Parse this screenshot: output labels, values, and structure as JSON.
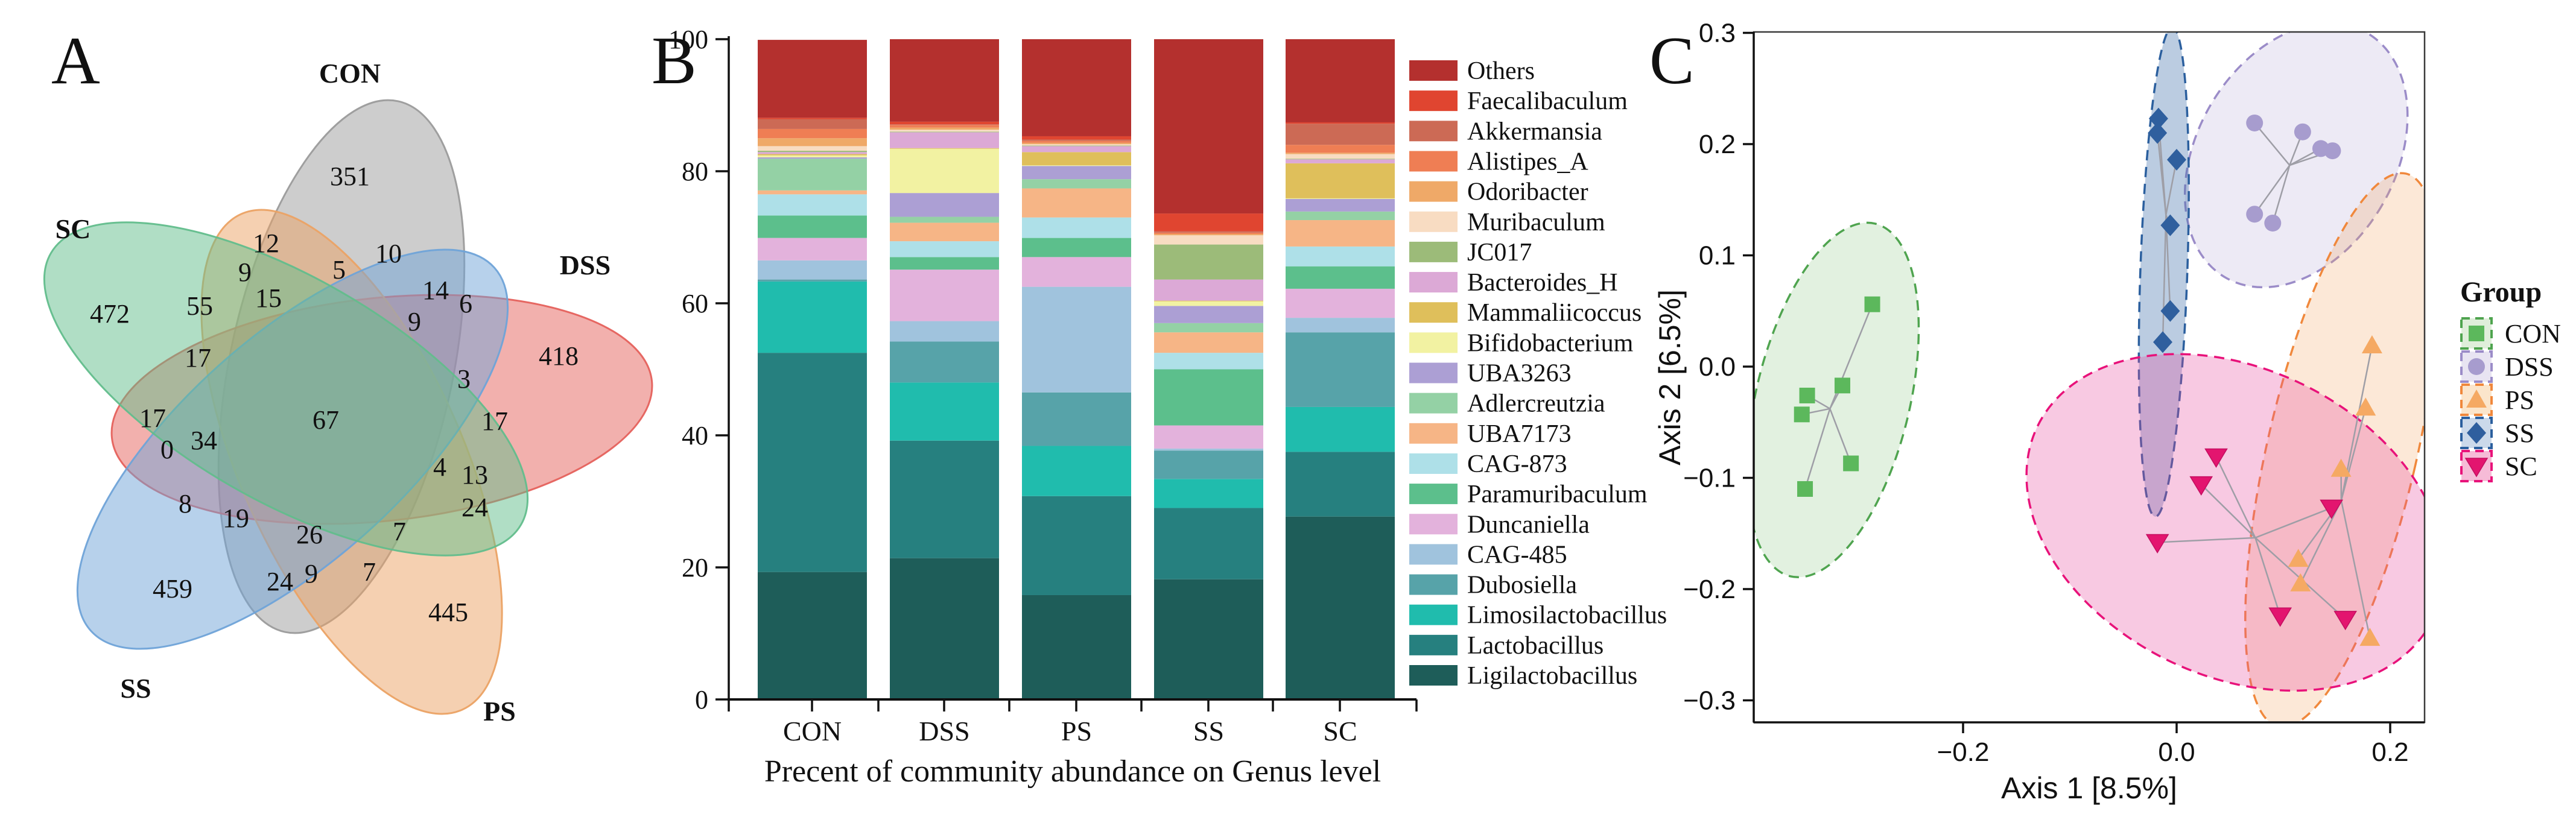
{
  "panels": {
    "a": {
      "letter": "A"
    },
    "b": {
      "letter": "B",
      "xlabel": "Precent of community abundance on Genus level"
    },
    "c": {
      "letter": "C",
      "xlabel": "Axis 1 [8.5%]",
      "ylabel": "Axis 2 [6.5%]",
      "legend_title": "Group"
    }
  },
  "chart_data": [
    {
      "type": "venn",
      "panel": "A",
      "set_labels": [
        {
          "name": "CON",
          "x": 580,
          "y": 137
        },
        {
          "name": "SC",
          "x": 121,
          "y": 395
        },
        {
          "name": "DSS",
          "x": 970,
          "y": 455
        },
        {
          "name": "SS",
          "x": 225,
          "y": 1157
        },
        {
          "name": "PS",
          "x": 828,
          "y": 1195
        }
      ],
      "ellipses": [
        {
          "set": "CON",
          "cx": 566,
          "cy": 608,
          "rot": 12,
          "color": "#9B9B9B"
        },
        {
          "set": "DSS",
          "cx": 633,
          "cy": 679,
          "rot": 84,
          "color": "#E5615C"
        },
        {
          "set": "PS",
          "cx": 583,
          "cy": 766,
          "rot": 156,
          "color": "#EBA264"
        },
        {
          "set": "SS",
          "cx": 485,
          "cy": 745,
          "rot": 228,
          "color": "#6FA3D8"
        },
        {
          "set": "SC",
          "cx": 474,
          "cy": 645,
          "rot": 300,
          "color": "#62BD8C"
        }
      ],
      "ellipse_rx": 185,
      "ellipse_ry": 450,
      "fill_opacity": 0.5,
      "counts": [
        {
          "v": "351",
          "x": 580,
          "y": 307
        },
        {
          "v": "472",
          "x": 182,
          "y": 535
        },
        {
          "v": "418",
          "x": 926,
          "y": 605
        },
        {
          "v": "459",
          "x": 286,
          "y": 991
        },
        {
          "v": "445",
          "x": 743,
          "y": 1030
        },
        {
          "v": "12",
          "x": 441,
          "y": 418
        },
        {
          "v": "9",
          "x": 406,
          "y": 466
        },
        {
          "v": "5",
          "x": 562,
          "y": 462
        },
        {
          "v": "10",
          "x": 644,
          "y": 435
        },
        {
          "v": "14",
          "x": 722,
          "y": 496
        },
        {
          "v": "6",
          "x": 772,
          "y": 518
        },
        {
          "v": "9",
          "x": 687,
          "y": 548
        },
        {
          "v": "55",
          "x": 331,
          "y": 522
        },
        {
          "v": "15",
          "x": 445,
          "y": 509
        },
        {
          "v": "17",
          "x": 328,
          "y": 608
        },
        {
          "v": "3",
          "x": 769,
          "y": 643
        },
        {
          "v": "67",
          "x": 540,
          "y": 711
        },
        {
          "v": "17",
          "x": 820,
          "y": 713
        },
        {
          "v": "17",
          "x": 253,
          "y": 708
        },
        {
          "v": "34",
          "x": 338,
          "y": 745
        },
        {
          "v": "0",
          "x": 277,
          "y": 760
        },
        {
          "v": "4",
          "x": 729,
          "y": 789
        },
        {
          "v": "13",
          "x": 787,
          "y": 802
        },
        {
          "v": "8",
          "x": 307,
          "y": 850
        },
        {
          "v": "19",
          "x": 391,
          "y": 874
        },
        {
          "v": "26",
          "x": 513,
          "y": 901
        },
        {
          "v": "7",
          "x": 662,
          "y": 896
        },
        {
          "v": "24",
          "x": 787,
          "y": 856
        },
        {
          "v": "24",
          "x": 464,
          "y": 979
        },
        {
          "v": "9",
          "x": 516,
          "y": 966
        },
        {
          "v": "7",
          "x": 612,
          "y": 963
        }
      ]
    },
    {
      "type": "bar",
      "stacked": true,
      "panel": "B",
      "title": "",
      "xlabel": "Precent of community abundance on Genus level",
      "ylabel": "",
      "ylim": [
        0,
        100
      ],
      "yticks": [
        "0",
        "20",
        "40",
        "60",
        "80",
        "100"
      ],
      "categories": [
        "CON",
        "DSS",
        "PS",
        "SS",
        "SC"
      ],
      "series": [
        {
          "name": "Ligilactobacillus",
          "color": "#1E5D59",
          "values": [
            19.3,
            21.4,
            15.8,
            18.2,
            27.7
          ]
        },
        {
          "name": "Lactobacillus",
          "color": "#26807F",
          "values": [
            33.2,
            17.8,
            15.0,
            10.8,
            9.8
          ]
        },
        {
          "name": "Limosilactobacillus",
          "color": "#20BCAD",
          "values": [
            10.8,
            8.8,
            7.6,
            4.4,
            6.8
          ]
        },
        {
          "name": "Dubosiella",
          "color": "#57A3A9",
          "values": [
            0.3,
            6.2,
            8.1,
            4.3,
            11.3
          ]
        },
        {
          "name": "CAG-485",
          "color": "#A0C3DD",
          "values": [
            2.9,
            3.1,
            16.0,
            0.3,
            2.2
          ]
        },
        {
          "name": "Duncaniella",
          "color": "#E3B2DC",
          "values": [
            3.4,
            7.8,
            4.5,
            3.5,
            4.4
          ]
        },
        {
          "name": "Paramuribaculum",
          "color": "#5CBF8C",
          "values": [
            3.4,
            1.9,
            2.9,
            8.5,
            3.4
          ]
        },
        {
          "name": "CAG-873",
          "color": "#AEE0E8",
          "values": [
            3.2,
            2.4,
            3.1,
            2.5,
            3.0
          ]
        },
        {
          "name": "UBA7173",
          "color": "#F6B586",
          "values": [
            0.6,
            2.8,
            4.4,
            3.1,
            4.0
          ]
        },
        {
          "name": "Adlercreutzia",
          "color": "#94D1A5",
          "values": [
            4.8,
            0.9,
            1.4,
            1.4,
            1.3
          ]
        },
        {
          "name": "UBA3263",
          "color": "#AC9FD4",
          "values": [
            0.2,
            3.6,
            2.0,
            2.6,
            1.9
          ]
        },
        {
          "name": "Bifidobacterium",
          "color": "#F2F2A2",
          "values": [
            0.3,
            6.7,
            0.1,
            0.7,
            0.1
          ]
        },
        {
          "name": "Mammaliicoccus",
          "color": "#DFBF5B",
          "values": [
            0.2,
            0.1,
            2.0,
            0.1,
            5.3
          ]
        },
        {
          "name": "Bacteroides_H",
          "color": "#DCA9D6",
          "values": [
            0.3,
            2.4,
            0.9,
            3.2,
            0.6
          ]
        },
        {
          "name": "JC017",
          "color": "#9CBB79",
          "values": [
            0.2,
            0.1,
            0.1,
            5.3,
            0.1
          ]
        },
        {
          "name": "Muribaculum",
          "color": "#F8DCC2",
          "values": [
            0.7,
            0.3,
            0.2,
            1.4,
            0.7
          ]
        },
        {
          "name": "Odoribacter",
          "color": "#EFA968",
          "values": [
            1.2,
            0.3,
            0.2,
            0.2,
            0.2
          ]
        },
        {
          "name": "Alistipes_A",
          "color": "#EF7E54",
          "values": [
            1.4,
            0.4,
            0.3,
            0.2,
            1.2
          ]
        },
        {
          "name": "Akkermansia",
          "color": "#CC6A55",
          "values": [
            1.5,
            0.1,
            0.2,
            0.2,
            3.2
          ]
        },
        {
          "name": "Faecalibaculum",
          "color": "#E04530",
          "values": [
            0.2,
            0.4,
            0.5,
            2.7,
            0.2
          ]
        },
        {
          "name": "Others",
          "color": "#B4302E",
          "values": [
            11.8,
            12.5,
            14.7,
            26.4,
            12.6
          ]
        }
      ],
      "legend_position": "right"
    },
    {
      "type": "scatter",
      "panel": "C",
      "xlabel": "Axis 1 [8.5%]",
      "ylabel": "Axis 2 [6.5%]",
      "xlim": [
        -0.396,
        0.232
      ],
      "ylim": [
        -0.32,
        0.301
      ],
      "xticks": [
        {
          "v": -0.2,
          "label": "−0.2"
        },
        {
          "v": 0.0,
          "label": "0.0"
        },
        {
          "v": 0.2,
          "label": "0.2"
        }
      ],
      "yticks": [
        {
          "v": 0.3,
          "label": "0.3"
        },
        {
          "v": 0.2,
          "label": "0.2"
        },
        {
          "v": 0.1,
          "label": "0.1"
        },
        {
          "v": 0.0,
          "label": "0.0"
        },
        {
          "v": -0.1,
          "label": "−0.1"
        },
        {
          "v": -0.2,
          "label": "−0.2"
        },
        {
          "v": -0.3,
          "label": "−0.3"
        }
      ],
      "legend_title": "Group",
      "groups": [
        {
          "name": "CON",
          "marker": "square",
          "color": "#5CB85C",
          "key_fill": "#DFEEDA",
          "ellipse": {
            "cx": -0.322,
            "cy": -0.03,
            "rx": 0.072,
            "ry": 0.163,
            "rot": 13.5,
            "fill": "rgba(111,184,101,0.20)",
            "stroke": "#4FA44F"
          },
          "points": [
            [
              -0.285,
              0.056
            ],
            [
              -0.313,
              -0.017
            ],
            [
              -0.346,
              -0.026
            ],
            [
              -0.351,
              -0.043
            ],
            [
              -0.305,
              -0.087
            ],
            [
              -0.348,
              -0.11
            ]
          ]
        },
        {
          "name": "DSS",
          "marker": "circle",
          "color": "#A79CCE",
          "key_fill": "#E8E4F2",
          "ellipse": {
            "cx": 0.112,
            "cy": 0.19,
            "rx": 0.093,
            "ry": 0.127,
            "rot": 30,
            "fill": "rgba(154,140,200,0.18)",
            "stroke": "#9B8CC8"
          },
          "points": [
            [
              0.073,
              0.219
            ],
            [
              0.118,
              0.211
            ],
            [
              0.135,
              0.196
            ],
            [
              0.146,
              0.194
            ],
            [
              0.073,
              0.137
            ],
            [
              0.09,
              0.129
            ]
          ]
        },
        {
          "name": "PS",
          "marker": "triangle-up",
          "color": "#F5A963",
          "key_fill": "#FBE5CB",
          "ellipse": {
            "cx": 0.155,
            "cy": -0.075,
            "rx": 0.07,
            "ry": 0.255,
            "rot": 13,
            "fill": "rgba(244,164,96,0.25)",
            "stroke": "#F0883C"
          },
          "points": [
            [
              0.183,
              0.019
            ],
            [
              0.177,
              -0.037
            ],
            [
              0.154,
              -0.092
            ],
            [
              0.114,
              -0.173
            ],
            [
              0.116,
              -0.195
            ],
            [
              0.181,
              -0.244
            ]
          ]
        },
        {
          "name": "SS",
          "marker": "diamond",
          "color": "#2F5F9E",
          "key_fill": "#CBD9EA",
          "ellipse": {
            "cx": -0.012,
            "cy": 0.085,
            "rx": 0.022,
            "ry": 0.22,
            "rot": 2,
            "fill": "rgba(59,108,170,0.35)",
            "stroke": "#2B5F9E"
          },
          "points": [
            [
              -0.017,
              0.223
            ],
            [
              -0.018,
              0.21
            ],
            [
              0.0,
              0.186
            ],
            [
              -0.006,
              0.127
            ],
            [
              -0.006,
              0.05
            ],
            [
              -0.013,
              0.022
            ]
          ]
        },
        {
          "name": "SC",
          "marker": "triangle-down",
          "color": "#E3156F",
          "key_fill": "#F6BBD7",
          "ellipse": {
            "cx": 0.055,
            "cy": -0.14,
            "rx": 0.206,
            "ry": 0.138,
            "rot": 26,
            "fill": "rgba(233,77,158,0.30)",
            "stroke": "#E8127A"
          },
          "points": [
            [
              -0.018,
              -0.158
            ],
            [
              0.037,
              -0.081
            ],
            [
              0.023,
              -0.106
            ],
            [
              0.145,
              -0.127
            ],
            [
              0.097,
              -0.224
            ],
            [
              0.158,
              -0.227
            ]
          ]
        }
      ]
    }
  ]
}
